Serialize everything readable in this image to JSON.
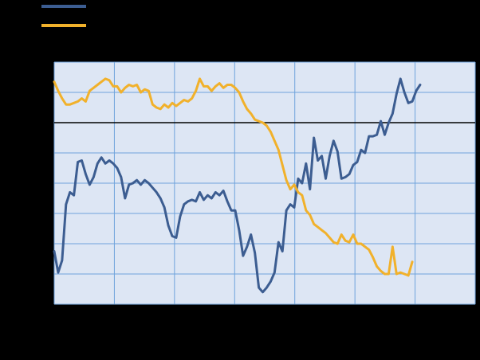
{
  "chart_data": {
    "type": "line",
    "title": "",
    "xlabel": "",
    "ylabel": "",
    "grid": true,
    "legend_position": "top-left",
    "background_color": "#dde6f4",
    "grid_color": "#6fa3dc",
    "reference_line_color": "#000000",
    "reference_y": 6,
    "xlim": [
      0,
      107
    ],
    "ylim": [
      0,
      8
    ],
    "series": [
      {
        "name": "",
        "color": "#3c5d91",
        "values": [
          1.75,
          1.05,
          1.45,
          3.3,
          3.7,
          3.6,
          4.7,
          4.75,
          4.3,
          3.95,
          4.2,
          4.65,
          4.85,
          4.65,
          4.75,
          4.65,
          4.5,
          4.2,
          3.5,
          3.95,
          4.0,
          4.1,
          3.95,
          4.1,
          4.0,
          3.85,
          3.7,
          3.5,
          3.2,
          2.6,
          2.25,
          2.2,
          2.9,
          3.3,
          3.4,
          3.45,
          3.4,
          3.7,
          3.45,
          3.6,
          3.5,
          3.7,
          3.6,
          3.75,
          3.4,
          3.1,
          3.1,
          2.45,
          1.6,
          1.9,
          2.3,
          1.7,
          0.55,
          0.4,
          0.55,
          0.75,
          1.05,
          2.05,
          1.75,
          3.1,
          3.3,
          3.2,
          4.15,
          4.0,
          4.65,
          3.8,
          5.5,
          4.75,
          4.9,
          4.15,
          4.9,
          5.4,
          5.05,
          4.15,
          4.2,
          4.3,
          4.6,
          4.7,
          5.1,
          5.0,
          5.55,
          5.55,
          5.6,
          6.05,
          5.6,
          6.0,
          6.3,
          6.95,
          7.45,
          7.0,
          6.65,
          6.7,
          7.05,
          7.25
        ]
      },
      {
        "name": "",
        "color": "#f1b12b",
        "values": [
          7.35,
          7.05,
          6.8,
          6.6,
          6.6,
          6.65,
          6.7,
          6.8,
          6.7,
          7.05,
          7.15,
          7.25,
          7.35,
          7.45,
          7.4,
          7.2,
          7.2,
          7.0,
          7.15,
          7.25,
          7.2,
          7.25,
          7.0,
          7.1,
          7.05,
          6.6,
          6.5,
          6.45,
          6.6,
          6.5,
          6.65,
          6.55,
          6.65,
          6.75,
          6.7,
          6.8,
          7.05,
          7.45,
          7.2,
          7.2,
          7.05,
          7.2,
          7.3,
          7.15,
          7.25,
          7.25,
          7.15,
          7.0,
          6.7,
          6.45,
          6.3,
          6.1,
          6.05,
          6.0,
          5.9,
          5.7,
          5.4,
          5.1,
          4.6,
          4.1,
          3.8,
          3.95,
          3.7,
          3.6,
          3.1,
          2.95,
          2.65,
          2.55,
          2.45,
          2.35,
          2.2,
          2.05,
          2.0,
          2.3,
          2.1,
          2.05,
          2.3,
          2.0,
          2.0,
          1.9,
          1.8,
          1.55,
          1.25,
          1.1,
          1.0,
          1.0,
          1.9,
          1.0,
          1.05,
          1.0,
          0.95,
          1.4
        ]
      }
    ]
  }
}
